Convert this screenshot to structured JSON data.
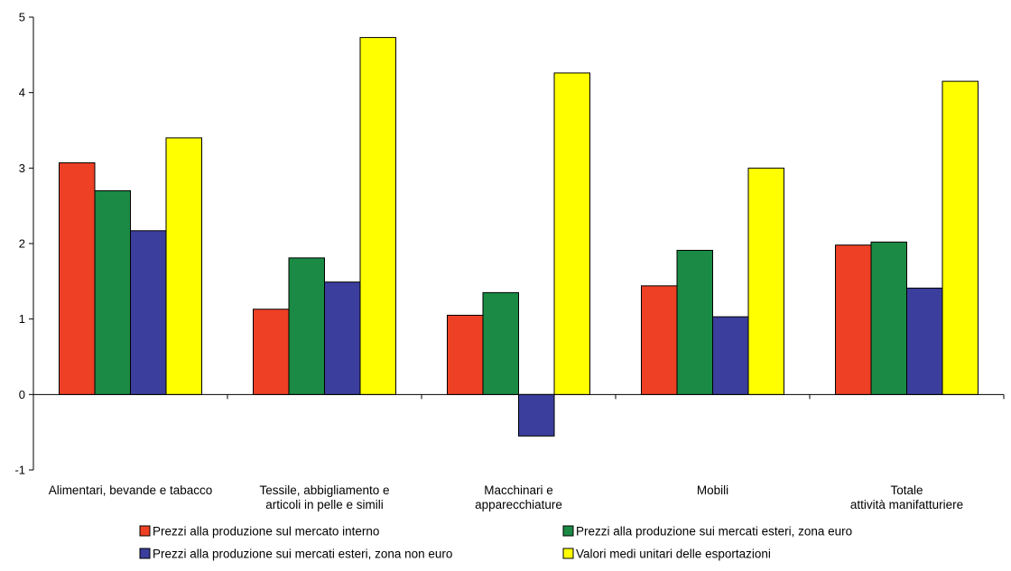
{
  "chart_data": {
    "type": "bar",
    "title": "",
    "xlabel": "",
    "ylabel": "",
    "ylim": [
      -1,
      5
    ],
    "yticks": [
      -1,
      0,
      1,
      2,
      3,
      4,
      5
    ],
    "grid": false,
    "legend_position": "bottom",
    "categories": [
      [
        "Alimentari, bevande e tabacco"
      ],
      [
        "Tessile, abbigliamento e",
        "articoli in pelle e simili"
      ],
      [
        "Macchinari e",
        "apparecchiature"
      ],
      [
        "Mobili"
      ],
      [
        "Totale",
        "attività manifatturiere"
      ]
    ],
    "series": [
      {
        "name": "Prezzi alla produzione sul mercato interno",
        "color": "#ee4025",
        "values": [
          3.07,
          1.13,
          1.05,
          1.44,
          1.98
        ]
      },
      {
        "name": "Prezzi alla produzione sui mercati esteri, zona euro",
        "color": "#1a8a44",
        "values": [
          2.7,
          1.81,
          1.35,
          1.91,
          2.02
        ]
      },
      {
        "name": "Prezzi alla produzione sui mercati esteri, zona non euro",
        "color": "#3b3e9c",
        "values": [
          2.17,
          1.49,
          -0.55,
          1.03,
          1.41
        ]
      },
      {
        "name": "Valori medi unitari delle esportazioni",
        "color": "#ffff00",
        "values": [
          3.4,
          4.73,
          4.26,
          3.0,
          4.15
        ]
      }
    ]
  }
}
